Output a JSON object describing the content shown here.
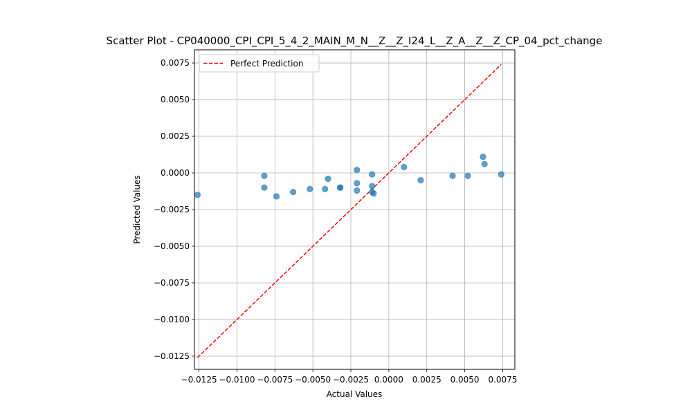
{
  "chart_data": {
    "type": "scatter",
    "title": "Scatter Plot - CP040000_CPI_CPI_5_4_2_MAIN_M_N__Z__Z_I24_L__Z_A__Z__Z_CP_04_pct_change",
    "xlabel": "Actual Values",
    "ylabel": "Predicted Values",
    "xlim": [
      -0.0128,
      0.0083
    ],
    "ylim": [
      -0.0134,
      0.0084
    ],
    "xticks": [
      -0.0125,
      -0.01,
      -0.0075,
      -0.005,
      -0.0025,
      0.0,
      0.0025,
      0.005,
      0.0075
    ],
    "xtick_labels": [
      "−0.0125",
      "−0.0100",
      "−0.0075",
      "−0.0050",
      "−0.0025",
      "0.0000",
      "0.0025",
      "0.0050",
      "0.0075"
    ],
    "yticks": [
      -0.0125,
      -0.01,
      -0.0075,
      -0.005,
      -0.0025,
      0.0,
      0.0025,
      0.005,
      0.0075
    ],
    "ytick_labels": [
      "−0.0125",
      "−0.0100",
      "−0.0075",
      "−0.0050",
      "−0.0025",
      "0.0000",
      "0.0025",
      "0.0050",
      "0.0075"
    ],
    "grid": true,
    "legend_position": "upper-left",
    "legend": [
      "Perfect Prediction"
    ],
    "series": [
      {
        "kind": "points",
        "color": "#1f77b4",
        "points": [
          [
            -0.0126,
            -0.0015
          ],
          [
            -0.0082,
            -0.0002
          ],
          [
            -0.0082,
            -0.001
          ],
          [
            -0.0074,
            -0.0016
          ],
          [
            -0.0063,
            -0.0013
          ],
          [
            -0.0052,
            -0.0011
          ],
          [
            -0.0042,
            -0.0011
          ],
          [
            -0.004,
            -0.0004
          ],
          [
            -0.0032,
            -0.001
          ],
          [
            -0.0032,
            -0.001
          ],
          [
            -0.0021,
            0.0002
          ],
          [
            -0.0021,
            -0.0007
          ],
          [
            -0.0021,
            -0.0012
          ],
          [
            -0.0011,
            -0.0001
          ],
          [
            -0.0011,
            -0.0009
          ],
          [
            -0.0011,
            -0.0013
          ],
          [
            -0.001,
            -0.0014
          ],
          [
            0.001,
            0.0004
          ],
          [
            0.0021,
            -0.0005
          ],
          [
            0.0042,
            -0.0002
          ],
          [
            0.0052,
            -0.0002
          ],
          [
            0.0062,
            0.0011
          ],
          [
            0.0063,
            0.0006
          ],
          [
            0.0074,
            -0.0001
          ]
        ]
      },
      {
        "kind": "line",
        "name": "Perfect Prediction",
        "color": "#ff0000",
        "style": "dashed",
        "x": [
          -0.0126,
          0.0074
        ],
        "y": [
          -0.0126,
          0.0074
        ]
      }
    ]
  }
}
